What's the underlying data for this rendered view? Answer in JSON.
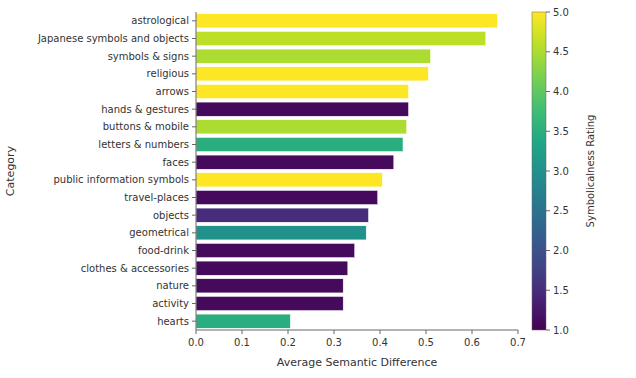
{
  "chart_data": {
    "type": "bar",
    "orientation": "horizontal",
    "categories": [
      "hearts",
      "activity",
      "nature",
      "clothes & accessories",
      "food-drink",
      "geometrical",
      "objects",
      "travel-places",
      "public information symbols",
      "faces",
      "letters & numbers",
      "buttons & mobile",
      "hands & gestures",
      "arrows",
      "religious",
      "symbols & signs",
      "Japanese symbols and objects",
      "astrological"
    ],
    "values": [
      0.205,
      0.32,
      0.32,
      0.33,
      0.345,
      0.37,
      0.375,
      0.395,
      0.405,
      0.43,
      0.45,
      0.458,
      0.462,
      0.462,
      0.505,
      0.51,
      0.63,
      0.655
    ],
    "color_values": [
      3.5,
      1.1,
      1.1,
      1.1,
      1.1,
      3.0,
      1.5,
      1.1,
      5.0,
      1.1,
      3.5,
      4.5,
      1.1,
      5.0,
      5.0,
      4.5,
      4.6,
      5.0
    ],
    "xlabel": "Average Semantic Difference",
    "ylabel": "Category",
    "xlim": [
      0,
      0.7
    ],
    "xticks": [
      {
        "value": 0,
        "label": "0.0"
      },
      0.1,
      0.2,
      0.3,
      0.4,
      0.5,
      0.6,
      0.7
    ],
    "colorbar_label": "Symbolicalness Rating",
    "colorbar_range": [
      1.0,
      5.0
    ],
    "colorbar_ticks": [
      {
        "value": 1,
        "label": "1.0"
      },
      1.5,
      {
        "value": 2,
        "label": "2.0"
      },
      2.5,
      {
        "value": 3,
        "label": "3.0"
      },
      3.5,
      {
        "value": 4,
        "label": "4.0"
      },
      4.5,
      {
        "value": 5,
        "label": "5.0"
      }
    ],
    "grid": false
  }
}
